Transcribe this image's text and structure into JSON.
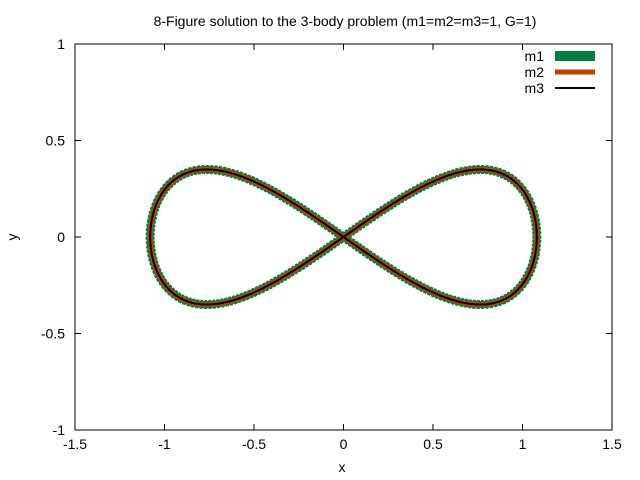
{
  "chart_data": {
    "type": "line",
    "title": "8-Figure solution to the 3-body problem (m1=m2=m3=1, G=1)",
    "xlabel": "x",
    "ylabel": "y",
    "xlim": [
      -1.5,
      1.5
    ],
    "ylim": [
      -1,
      1
    ],
    "xticks": [
      -1.5,
      -1,
      -0.5,
      0,
      0.5,
      1,
      1.5
    ],
    "yticks": [
      -1,
      -0.5,
      0,
      0.5,
      1
    ],
    "xtick_labels": [
      "-1.5",
      "-1",
      "-0.5",
      "0",
      "0.5",
      "1",
      "1.5"
    ],
    "ytick_labels": [
      "-1",
      "-0.5",
      "0",
      "0.5",
      "1"
    ],
    "grid": false,
    "legend_position": "top-right",
    "series": [
      {
        "name": "m1",
        "color": "#008040",
        "style": "thick jagged band"
      },
      {
        "name": "m2",
        "color": "#c04000",
        "style": "medium line"
      },
      {
        "name": "m3",
        "color": "#000000",
        "style": "thin line"
      }
    ],
    "curve": {
      "shape": "figure-eight (lemniscate)",
      "x_extent": [
        -1.08,
        1.08
      ],
      "y_extent": [
        -0.35,
        0.35
      ],
      "crossing_point": [
        0,
        0
      ]
    }
  }
}
